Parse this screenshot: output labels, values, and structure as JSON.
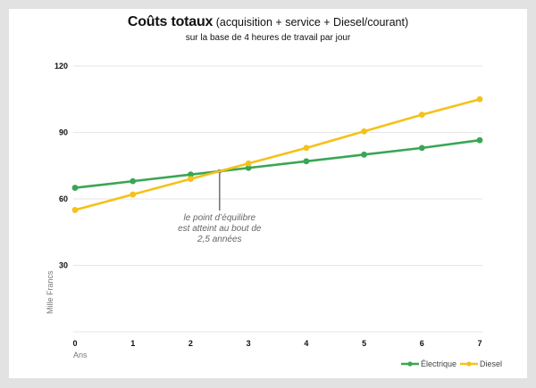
{
  "chart_data": {
    "type": "line",
    "title": "Coûts totaux",
    "title_suffix": "(acquisition + service + Diesel/courant)",
    "subtitle": "sur la base de 4 heures de travail par jour",
    "xlabel": "Ans",
    "ylabel": "Mille Francs",
    "x": [
      0,
      1,
      2,
      3,
      4,
      5,
      6,
      7
    ],
    "xticks": [
      "0",
      "1",
      "2",
      "3",
      "4",
      "5",
      "6",
      "7"
    ],
    "ylim": [
      0,
      120
    ],
    "yticks": [
      30,
      60,
      90,
      120
    ],
    "ytick_labels": [
      "30",
      "60",
      "90",
      "120"
    ],
    "grid": true,
    "legend_position": "bottom-right",
    "series": [
      {
        "name": "Électrique",
        "color": "#3aa655",
        "values": [
          65,
          68,
          71,
          74,
          77,
          80,
          83,
          86.5
        ]
      },
      {
        "name": "Diesel",
        "color": "#f5c11a",
        "values": [
          55,
          62,
          69,
          76,
          83,
          90.5,
          98,
          105
        ]
      }
    ],
    "annotation": {
      "lines": [
        "le point d’équilibre",
        "est atteint au bout de",
        "2,5 années"
      ],
      "x": 2.5,
      "y": 72.5
    }
  }
}
